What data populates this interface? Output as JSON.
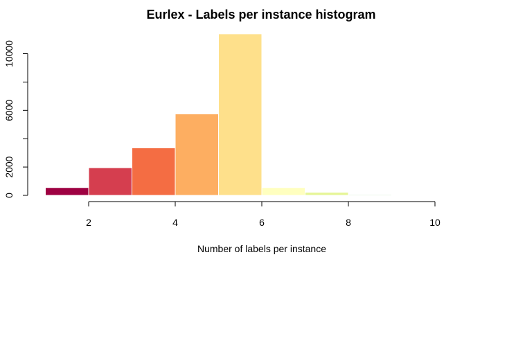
{
  "chart_data": {
    "type": "bar",
    "title": "Eurlex - Labels per instance histogram",
    "xlabel": "Number of labels per instance",
    "ylabel": "",
    "bins": [
      {
        "start": 1,
        "end": 2,
        "count": 550,
        "color": "#9E0142"
      },
      {
        "start": 2,
        "end": 3,
        "count": 1950,
        "color": "#D53E4F"
      },
      {
        "start": 3,
        "end": 4,
        "count": 3350,
        "color": "#F46D43"
      },
      {
        "start": 4,
        "end": 5,
        "count": 5750,
        "color": "#FDAE61"
      },
      {
        "start": 5,
        "end": 6,
        "count": 11400,
        "color": "#FEE08B"
      },
      {
        "start": 6,
        "end": 7,
        "count": 550,
        "color": "#FFFFBF"
      },
      {
        "start": 7,
        "end": 8,
        "count": 220,
        "color": "#E6F598"
      },
      {
        "start": 8,
        "end": 9,
        "count": 60,
        "color": "#ABDDA4"
      }
    ],
    "xlim": [
      1,
      10
    ],
    "ylim": [
      0,
      11400
    ],
    "x_ticks": [
      2,
      4,
      6,
      8,
      10
    ],
    "y_ticks": [
      0,
      2000,
      4000,
      6000,
      8000,
      10000
    ],
    "y_tick_labels_shown": [
      "0",
      "2000",
      "6000",
      "10000"
    ],
    "grid": false,
    "legend": "none"
  }
}
